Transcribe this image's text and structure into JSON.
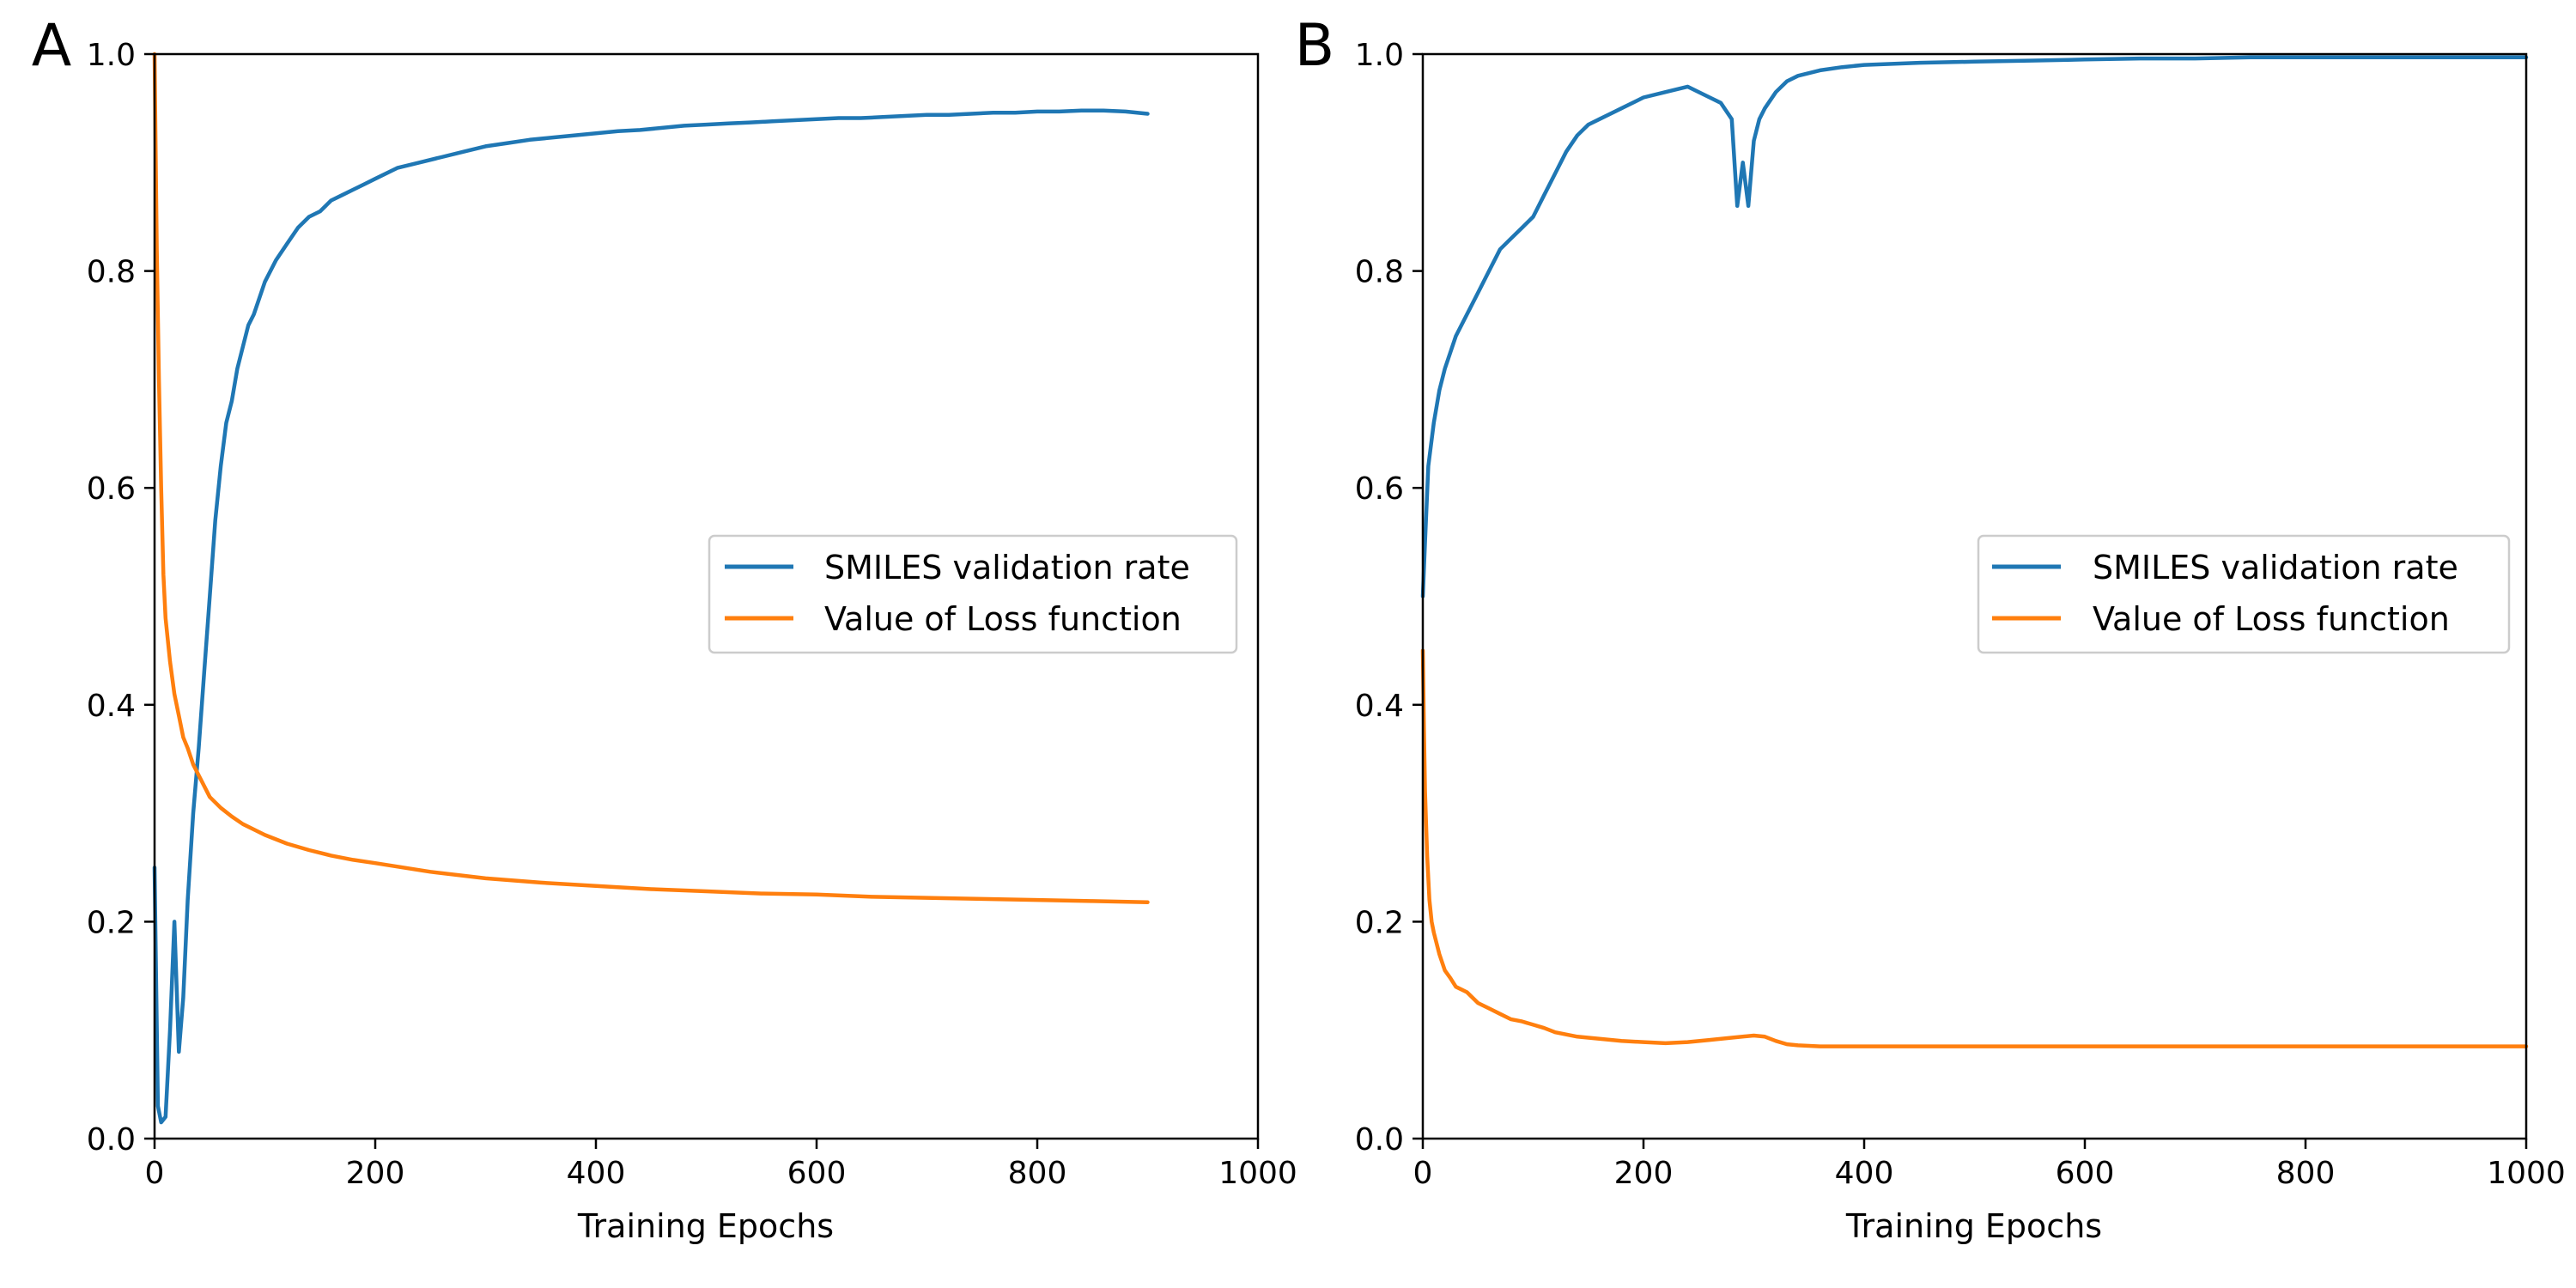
{
  "colors": {
    "validation": "#1f77b4",
    "loss": "#ff7f0e",
    "axes": "#000000",
    "legend_border": "#cccccc"
  },
  "chart_data": [
    {
      "type": "line",
      "panel_label": "A",
      "xlabel": "Training Epochs",
      "ylabel": "",
      "xlim": [
        0,
        1000
      ],
      "ylim": [
        0,
        1.0
      ],
      "xticks": [
        "0",
        "200",
        "400",
        "600",
        "800",
        "1000"
      ],
      "yticks": [
        "0.0",
        "0.2",
        "0.4",
        "0.6",
        "0.8",
        "1.0"
      ],
      "grid": false,
      "legend_position": "center-right",
      "series": [
        {
          "name": "SMILES validation rate",
          "color": "#1f77b4",
          "x": [
            0,
            3,
            6,
            10,
            14,
            18,
            22,
            26,
            30,
            35,
            40,
            45,
            50,
            55,
            60,
            65,
            70,
            75,
            80,
            85,
            90,
            100,
            110,
            120,
            130,
            140,
            150,
            160,
            170,
            180,
            190,
            200,
            220,
            240,
            260,
            280,
            300,
            320,
            340,
            360,
            380,
            400,
            420,
            440,
            460,
            480,
            500,
            520,
            540,
            560,
            580,
            600,
            620,
            640,
            660,
            680,
            700,
            720,
            740,
            760,
            780,
            800,
            820,
            840,
            860,
            880,
            900
          ],
          "y": [
            0.25,
            0.03,
            0.015,
            0.02,
            0.1,
            0.2,
            0.08,
            0.13,
            0.22,
            0.3,
            0.36,
            0.43,
            0.5,
            0.57,
            0.62,
            0.66,
            0.68,
            0.71,
            0.73,
            0.75,
            0.76,
            0.79,
            0.81,
            0.825,
            0.84,
            0.85,
            0.855,
            0.865,
            0.87,
            0.875,
            0.88,
            0.885,
            0.895,
            0.9,
            0.905,
            0.91,
            0.915,
            0.918,
            0.921,
            0.923,
            0.925,
            0.927,
            0.929,
            0.93,
            0.932,
            0.934,
            0.935,
            0.936,
            0.937,
            0.938,
            0.939,
            0.94,
            0.941,
            0.941,
            0.942,
            0.943,
            0.944,
            0.944,
            0.945,
            0.946,
            0.946,
            0.947,
            0.947,
            0.948,
            0.948,
            0.947,
            0.945
          ]
        },
        {
          "name": "Value of Loss function",
          "color": "#ff7f0e",
          "x": [
            0,
            2,
            4,
            6,
            8,
            10,
            14,
            18,
            22,
            26,
            30,
            35,
            40,
            50,
            60,
            70,
            80,
            90,
            100,
            120,
            140,
            160,
            180,
            200,
            250,
            300,
            350,
            400,
            450,
            500,
            550,
            600,
            650,
            700,
            750,
            800,
            850,
            900
          ],
          "y": [
            1.0,
            0.82,
            0.7,
            0.6,
            0.52,
            0.48,
            0.44,
            0.41,
            0.39,
            0.37,
            0.36,
            0.345,
            0.335,
            0.315,
            0.305,
            0.297,
            0.29,
            0.285,
            0.28,
            0.272,
            0.266,
            0.261,
            0.257,
            0.254,
            0.246,
            0.24,
            0.236,
            0.233,
            0.23,
            0.228,
            0.226,
            0.225,
            0.223,
            0.222,
            0.221,
            0.22,
            0.219,
            0.218
          ]
        }
      ]
    },
    {
      "type": "line",
      "panel_label": "B",
      "xlabel": "Training Epochs",
      "ylabel": "",
      "xlim": [
        0,
        1000
      ],
      "ylim": [
        0,
        1.0
      ],
      "xticks": [
        "0",
        "200",
        "400",
        "600",
        "800",
        "1000"
      ],
      "yticks": [
        "0.0",
        "0.2",
        "0.4",
        "0.6",
        "0.8",
        "1.0"
      ],
      "grid": false,
      "legend_position": "center-right",
      "series": [
        {
          "name": "SMILES validation rate",
          "color": "#1f77b4",
          "x": [
            0,
            2,
            5,
            10,
            15,
            20,
            30,
            40,
            50,
            60,
            70,
            80,
            90,
            100,
            110,
            120,
            130,
            140,
            150,
            160,
            180,
            200,
            220,
            240,
            260,
            270,
            280,
            285,
            290,
            295,
            300,
            305,
            310,
            320,
            330,
            340,
            360,
            380,
            400,
            450,
            500,
            550,
            600,
            650,
            700,
            750,
            800,
            850,
            900,
            950,
            1000
          ],
          "y": [
            0.5,
            0.55,
            0.62,
            0.66,
            0.69,
            0.71,
            0.74,
            0.76,
            0.78,
            0.8,
            0.82,
            0.83,
            0.84,
            0.85,
            0.87,
            0.89,
            0.91,
            0.925,
            0.935,
            0.94,
            0.95,
            0.96,
            0.965,
            0.97,
            0.96,
            0.955,
            0.94,
            0.86,
            0.9,
            0.86,
            0.92,
            0.94,
            0.95,
            0.965,
            0.975,
            0.98,
            0.985,
            0.988,
            0.99,
            0.992,
            0.993,
            0.994,
            0.995,
            0.996,
            0.996,
            0.997,
            0.997,
            0.997,
            0.997,
            0.997,
            0.997
          ]
        },
        {
          "name": "Value of Loss function",
          "color": "#ff7f0e",
          "x": [
            0,
            1,
            2,
            4,
            6,
            8,
            10,
            15,
            20,
            25,
            30,
            40,
            50,
            60,
            70,
            80,
            90,
            100,
            110,
            120,
            140,
            160,
            180,
            200,
            220,
            240,
            260,
            280,
            300,
            310,
            320,
            330,
            340,
            360,
            400,
            450,
            500,
            600,
            700,
            800,
            900,
            1000
          ],
          "y": [
            0.45,
            0.38,
            0.32,
            0.26,
            0.22,
            0.2,
            0.19,
            0.17,
            0.155,
            0.148,
            0.14,
            0.135,
            0.125,
            0.12,
            0.115,
            0.11,
            0.108,
            0.105,
            0.102,
            0.098,
            0.094,
            0.092,
            0.09,
            0.089,
            0.088,
            0.089,
            0.091,
            0.093,
            0.095,
            0.094,
            0.09,
            0.087,
            0.086,
            0.085,
            0.085,
            0.085,
            0.085,
            0.085,
            0.085,
            0.085,
            0.085,
            0.085
          ]
        }
      ]
    }
  ]
}
